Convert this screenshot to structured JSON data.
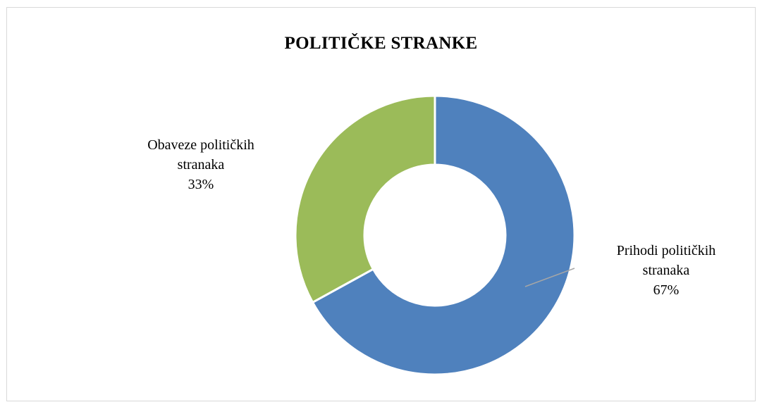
{
  "chart_data": {
    "type": "pie",
    "variant": "donut",
    "title": "POLITIČKE STRANKE",
    "series": [
      {
        "values": [
          67,
          33
        ]
      }
    ],
    "categories": [
      "Prihodi političkih stranaka",
      "Obaveze političkih stranaka"
    ],
    "slices": [
      {
        "category": "Prihodi političkih stranaka",
        "value": 67,
        "label_lines": [
          "Prihodi političkih",
          "stranaka"
        ],
        "percent_text": "67%",
        "color": "#4f81bd"
      },
      {
        "category": "Obaveze političkih stranaka",
        "value": 33,
        "label_lines": [
          "Obaveze političkih",
          "stranaka"
        ],
        "percent_text": "33%",
        "color": "#9bbb59"
      }
    ],
    "legend": "none",
    "grid": false
  }
}
